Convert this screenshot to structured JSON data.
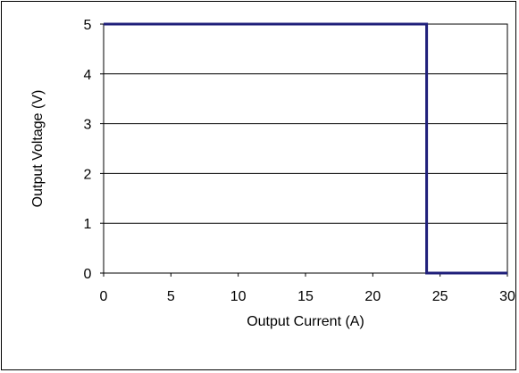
{
  "chart_data": {
    "type": "line",
    "title": "",
    "xlabel": "Output Current (A)",
    "ylabel": "Output Voltage (V)",
    "xlim": [
      0,
      30
    ],
    "ylim": [
      0,
      5
    ],
    "x_ticks": [
      "0",
      "5",
      "10",
      "15",
      "20",
      "25",
      "30"
    ],
    "y_ticks": [
      "0",
      "1",
      "2",
      "3",
      "4",
      "5"
    ],
    "grid": "horizontal",
    "legend": "none",
    "series": [
      {
        "color": "#1f1f7a",
        "x": [
          0,
          24,
          24,
          30
        ],
        "y": [
          5,
          5,
          0,
          0
        ]
      }
    ]
  }
}
